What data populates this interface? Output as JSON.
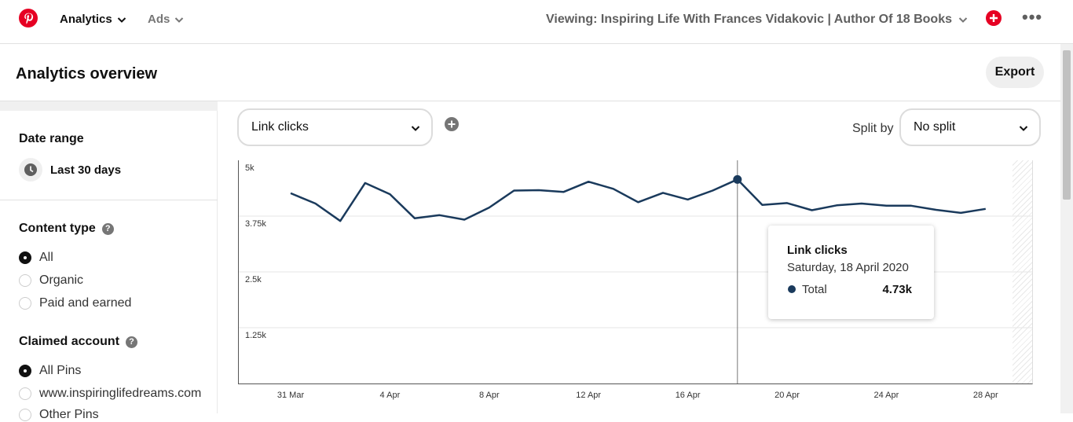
{
  "topbar": {
    "logo_icon": "pinterest-logo-icon",
    "nav": [
      {
        "label": "Analytics",
        "active": true
      },
      {
        "label": "Ads",
        "active": false
      }
    ],
    "viewing_label": "Viewing: Inspiring Life With Frances Vidakovic | Author Of 18 Books",
    "create_icon": "plus-circle-icon",
    "more_icon": "more-dots-icon"
  },
  "header": {
    "title": "Analytics overview",
    "export_label": "Export"
  },
  "sidebar": {
    "date_range": {
      "title": "Date range",
      "value": "Last 30 days",
      "icon": "clock-icon"
    },
    "content_type": {
      "title": "Content type",
      "options": [
        {
          "label": "All",
          "checked": true
        },
        {
          "label": "Organic",
          "checked": false
        },
        {
          "label": "Paid and earned",
          "checked": false
        }
      ]
    },
    "claimed_account": {
      "title": "Claimed account",
      "options": [
        {
          "label": "All Pins",
          "checked": true
        },
        {
          "label": "www.inspiringlifedreams.com",
          "checked": false
        },
        {
          "label": "Other Pins",
          "checked": false
        }
      ]
    }
  },
  "controls": {
    "metric_select": "Link clicks",
    "split_label": "Split by",
    "split_select": "No split"
  },
  "chart_data": {
    "type": "line",
    "title": "",
    "xlabel": "",
    "ylabel": "",
    "ylim": [
      0,
      5000
    ],
    "yticks": [
      "5k",
      "3.75k",
      "2.5k",
      "1.25k"
    ],
    "ytick_values": [
      5000,
      3750,
      2500,
      1250
    ],
    "xticks": [
      "31 Mar",
      "4 Apr",
      "8 Apr",
      "12 Apr",
      "16 Apr",
      "20 Apr",
      "24 Apr",
      "28 Apr"
    ],
    "xtick_dates": [
      "2020-03-31",
      "2020-04-04",
      "2020-04-08",
      "2020-04-12",
      "2020-04-16",
      "2020-04-20",
      "2020-04-24",
      "2020-04-28"
    ],
    "grid": true,
    "series": [
      {
        "color": "#1a3a5c",
        "x": [
          "2020-03-31",
          "2020-04-01",
          "2020-04-02",
          "2020-04-03",
          "2020-04-04",
          "2020-04-05",
          "2020-04-06",
          "2020-04-07",
          "2020-04-08",
          "2020-04-09",
          "2020-04-10",
          "2020-04-11",
          "2020-04-12",
          "2020-04-13",
          "2020-04-14",
          "2020-04-15",
          "2020-04-16",
          "2020-04-17",
          "2020-04-18",
          "2020-04-19",
          "2020-04-20",
          "2020-04-21",
          "2020-04-22",
          "2020-04-23",
          "2020-04-24",
          "2020-04-25",
          "2020-04-26",
          "2020-04-27",
          "2020-04-28"
        ],
        "values": [
          4420,
          4190,
          3800,
          4650,
          4400,
          3860,
          3930,
          3830,
          4100,
          4480,
          4490,
          4450,
          4680,
          4520,
          4220,
          4430,
          4280,
          4480,
          4730,
          4160,
          4200,
          4040,
          4150,
          4190,
          4140,
          4140,
          4050,
          3980,
          4070
        ]
      }
    ],
    "highlight": {
      "index": 18
    }
  },
  "tooltip": {
    "title": "Link clicks",
    "date": "Saturday, 18 April 2020",
    "series_label": "Total",
    "value": "4.73k"
  }
}
